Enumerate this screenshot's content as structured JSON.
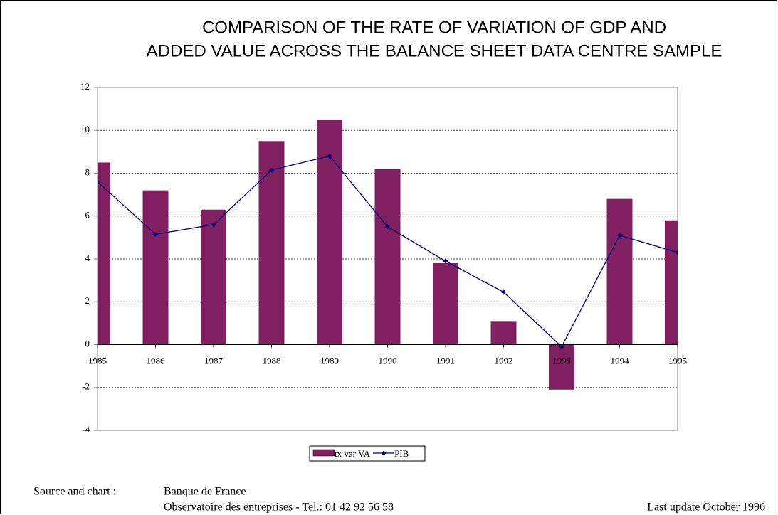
{
  "chart_data": {
    "type": "bar",
    "title": [
      "COMPARISON OF THE RATE OF VARIATION OF GDP AND",
      "ADDED VALUE ACROSS THE BALANCE SHEET DATA CENTRE SAMPLE"
    ],
    "categories": [
      "1985",
      "1986",
      "1987",
      "1988",
      "1989",
      "1990",
      "1991",
      "1992",
      "1993",
      "1994",
      "1995"
    ],
    "series": [
      {
        "name": "tx var VA",
        "type": "bar",
        "color": "#802060",
        "values": [
          8.5,
          7.2,
          6.3,
          9.5,
          10.5,
          8.2,
          3.8,
          1.1,
          -2.1,
          6.8,
          5.8
        ]
      },
      {
        "name": "PIB",
        "type": "line",
        "color": "#000080",
        "values": [
          7.6,
          5.15,
          5.6,
          8.15,
          8.8,
          5.5,
          3.9,
          2.45,
          -0.1,
          5.1,
          4.3
        ]
      }
    ],
    "ylim": [
      -4,
      12
    ],
    "yticks": [
      -4,
      -2,
      0,
      2,
      4,
      6,
      8,
      10,
      12
    ],
    "grid": true,
    "legend": "bottom"
  },
  "footer": {
    "source_label": "Source and chart :",
    "source": "Banque de France",
    "detail": "Observatoire des entreprises  - Tel.: 01 42 92 56 58",
    "last_update": "Last update October  1996"
  }
}
